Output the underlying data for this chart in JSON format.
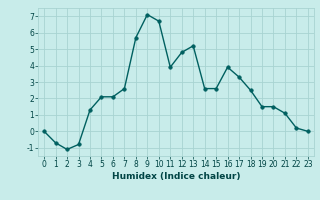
{
  "x": [
    0,
    1,
    2,
    3,
    4,
    5,
    6,
    7,
    8,
    9,
    10,
    11,
    12,
    13,
    14,
    15,
    16,
    17,
    18,
    19,
    20,
    21,
    22,
    23
  ],
  "y": [
    0,
    -0.7,
    -1.1,
    -0.8,
    1.3,
    2.1,
    2.1,
    2.6,
    5.7,
    7.1,
    6.7,
    3.9,
    4.8,
    5.2,
    2.6,
    2.6,
    3.9,
    3.3,
    2.5,
    1.5,
    1.5,
    1.1,
    0.2,
    0.0
  ],
  "line_color": "#006060",
  "marker_color": "#006060",
  "bg_color": "#c8ecea",
  "grid_color": "#a8d4d2",
  "xlabel": "Humidex (Indice chaleur)",
  "ylim": [
    -1.5,
    7.5
  ],
  "xlim": [
    -0.5,
    23.5
  ],
  "yticks": [
    -1,
    0,
    1,
    2,
    3,
    4,
    5,
    6,
    7
  ],
  "xticks": [
    0,
    1,
    2,
    3,
    4,
    5,
    6,
    7,
    8,
    9,
    10,
    11,
    12,
    13,
    14,
    15,
    16,
    17,
    18,
    19,
    20,
    21,
    22,
    23
  ],
  "font_color": "#004444",
  "linewidth": 1.0,
  "markersize": 2.5,
  "xlabel_fontsize": 6.5,
  "tick_fontsize": 5.5
}
